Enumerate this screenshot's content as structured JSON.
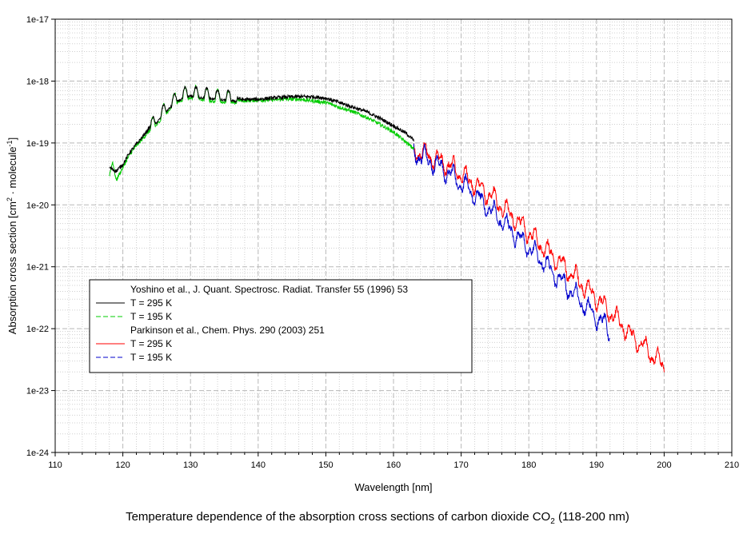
{
  "caption": {
    "main": "Temperature dependence of the absorption cross sections of carbon dioxide CO",
    "sub": "2",
    "tail": " (118-200 nm)"
  },
  "chart_data": {
    "type": "line",
    "title": "",
    "xlabel": "Wavelength [nm]",
    "ylabel": {
      "prefix": "Absorption cross section [cm",
      "sup1": "2",
      "middle": " · molecule",
      "sup2": "-1",
      "suffix": "]"
    },
    "xlim": [
      110,
      210
    ],
    "ylim_log10": [
      -24,
      -17
    ],
    "y_scale": "log",
    "grid": true,
    "xticks": [
      110,
      120,
      130,
      140,
      150,
      160,
      170,
      180,
      190,
      200,
      210
    ],
    "xtick_labels": [
      "110",
      "120",
      "130",
      "140",
      "150",
      "160",
      "170",
      "180",
      "190",
      "200",
      "210"
    ],
    "yticks_log10": [
      -17,
      -18,
      -19,
      -20,
      -21,
      -22,
      -23,
      -24
    ],
    "ytick_labels": [
      "1e-17",
      "1e-18",
      "1e-19",
      "1e-20",
      "1e-21",
      "1e-22",
      "1e-23",
      "1e-24"
    ],
    "legend_position": "lower-left",
    "legend": [
      {
        "label": "Yoshino et al., J. Quant. Spectrosc. Radiat. Transfer 55 (1996) 53",
        "style": "none",
        "color": "#000000"
      },
      {
        "label": "T = 295 K",
        "style": "solid",
        "color": "#000000"
      },
      {
        "label": "T = 195 K",
        "style": "dashed",
        "color": "#00cc00"
      },
      {
        "label": "Parkinson et al., Chem. Phys. 290 (2003) 251",
        "style": "none",
        "color": "#000000"
      },
      {
        "label": "T = 295 K",
        "style": "solid",
        "color": "#ff0000"
      },
      {
        "label": "T = 195 K",
        "style": "dashed",
        "color": "#0000cc"
      }
    ],
    "series": [
      {
        "name": "Yoshino et al. T = 295 K",
        "color": "#000000",
        "x": [
          118,
          119,
          120,
          121,
          122,
          123,
          124,
          125,
          126,
          127,
          128,
          129,
          130,
          131,
          132,
          133,
          134,
          135,
          136,
          137,
          138,
          140,
          142,
          144,
          146,
          148,
          150,
          152,
          154,
          156,
          158,
          160,
          162,
          163
        ],
        "y": [
          4e-20,
          3.5e-20,
          4.5e-20,
          7e-20,
          9.5e-20,
          1.3e-19,
          1.8e-19,
          2.4e-19,
          3.2e-19,
          4.2e-19,
          5.2e-19,
          6e-19,
          6.4e-19,
          6.2e-19,
          6e-19,
          5.8e-19,
          5.6e-19,
          5.5e-19,
          5.4e-19,
          5.2e-19,
          5e-19,
          5.1e-19,
          5.3e-19,
          5.5e-19,
          5.6e-19,
          5.6e-19,
          5.3e-19,
          4.5e-19,
          3.8e-19,
          3.2e-19,
          2.5e-19,
          1.9e-19,
          1.4e-19,
          1.1e-19
        ]
      },
      {
        "name": "Yoshino et al. T = 195 K",
        "color": "#00cc00",
        "x": [
          118,
          118.5,
          119,
          120,
          121,
          122,
          123,
          124,
          125,
          126,
          127,
          128,
          129,
          130,
          131,
          132,
          133,
          134,
          135,
          136,
          137,
          138,
          140,
          142,
          144,
          146,
          148,
          150,
          152,
          154,
          156,
          158,
          160,
          162,
          163
        ],
        "y": [
          3e-20,
          5e-20,
          2.5e-20,
          4e-20,
          6.5e-20,
          9e-20,
          1.2e-19,
          1.6e-19,
          2.2e-19,
          3e-19,
          4e-19,
          5e-19,
          5.6e-19,
          6e-19,
          5.8e-19,
          5.5e-19,
          5.3e-19,
          5.2e-19,
          5.1e-19,
          5e-19,
          4.9e-19,
          4.8e-19,
          4.9e-19,
          5e-19,
          5.1e-19,
          5.1e-19,
          4.8e-19,
          4.5e-19,
          3.8e-19,
          3.2e-19,
          2.6e-19,
          2e-19,
          1.5e-19,
          1e-19,
          8e-20
        ]
      },
      {
        "name": "Parkinson et al. T = 295 K",
        "color": "#ff0000",
        "x": [
          163,
          165,
          167,
          169,
          171,
          173,
          175,
          177,
          179,
          181,
          183,
          185,
          187,
          189,
          191,
          193,
          195,
          197,
          199,
          200
        ],
        "y": [
          7.5e-20,
          6.5e-20,
          5e-20,
          3.8e-20,
          2.6e-20,
          1.8e-20,
          1.2e-20,
          7.5e-21,
          4.5e-21,
          2.8e-21,
          1.7e-21,
          1.05e-21,
          6.5e-22,
          4e-22,
          2.4e-22,
          1.4e-22,
          8e-23,
          5e-23,
          3.2e-23,
          2.5e-23
        ]
      },
      {
        "name": "Parkinson et al. T = 195 K",
        "color": "#0000cc",
        "x": [
          163,
          165,
          167,
          169,
          171,
          173,
          175,
          177,
          179,
          181,
          183,
          185,
          187,
          189,
          191,
          192
        ],
        "y": [
          7e-20,
          5.5e-20,
          4e-20,
          2.8e-20,
          1.8e-20,
          1.15e-20,
          7e-21,
          4.3e-21,
          2.6e-21,
          1.6e-21,
          9.5e-22,
          5.6e-22,
          3.3e-22,
          2e-22,
          1.2e-22,
          9e-23
        ]
      }
    ]
  }
}
